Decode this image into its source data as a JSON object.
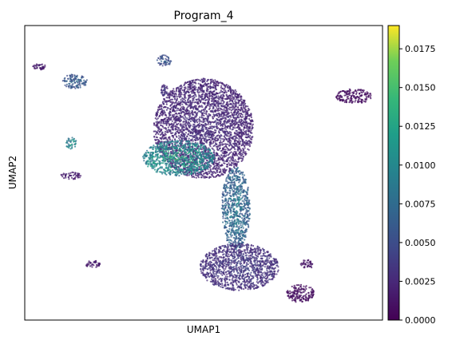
{
  "chart_data": {
    "type": "scatter",
    "title": "Program_4",
    "xlabel": "UMAP1",
    "ylabel": "UMAP2",
    "x_ticks": "none",
    "y_ticks": "none",
    "grid": false,
    "colorbar": {
      "colormap": "viridis",
      "min": 0.0,
      "max": 0.019,
      "ticks": [
        0.0,
        0.0025,
        0.005,
        0.0075,
        0.01,
        0.0125,
        0.015,
        0.0175
      ],
      "tick_labels": [
        "0.0000",
        "0.0025",
        "0.0050",
        "0.0075",
        "0.0100",
        "0.0125",
        "0.0150",
        "0.0175"
      ],
      "placement": "right"
    },
    "clusters": [
      {
        "cx": 4.0,
        "cy": 86.0,
        "rx": 2.0,
        "ry": 1.0,
        "value": 0.002
      },
      {
        "cx": 14.0,
        "cy": 81.0,
        "rx": 3.5,
        "ry": 2.5,
        "value": 0.0075
      },
      {
        "cx": 39.0,
        "cy": 88.0,
        "rx": 2.0,
        "ry": 2.0,
        "value": 0.0065
      },
      {
        "cx": 39.0,
        "cy": 78.0,
        "rx": 1.0,
        "ry": 2.0,
        "value": 0.004
      },
      {
        "cx": 50.0,
        "cy": 65.0,
        "rx": 14.0,
        "ry": 17.0,
        "value": 0.003
      },
      {
        "cx": 43.0,
        "cy": 55.0,
        "rx": 10.0,
        "ry": 6.0,
        "value": 0.013
      },
      {
        "cx": 59.0,
        "cy": 38.0,
        "rx": 4.0,
        "ry": 14.0,
        "value": 0.009
      },
      {
        "cx": 60.0,
        "cy": 18.0,
        "rx": 11.0,
        "ry": 8.0,
        "value": 0.004
      },
      {
        "cx": 92.0,
        "cy": 76.0,
        "rx": 5.0,
        "ry": 2.5,
        "value": 0.001
      },
      {
        "cx": 77.0,
        "cy": 9.0,
        "rx": 4.0,
        "ry": 3.0,
        "value": 0.001
      },
      {
        "cx": 79.0,
        "cy": 19.0,
        "rx": 2.0,
        "ry": 1.5,
        "value": 0.0015
      },
      {
        "cx": 13.0,
        "cy": 60.0,
        "rx": 1.5,
        "ry": 2.0,
        "value": 0.013
      },
      {
        "cx": 13.0,
        "cy": 49.0,
        "rx": 3.0,
        "ry": 1.2,
        "value": 0.002
      },
      {
        "cx": 19.0,
        "cy": 19.0,
        "rx": 2.0,
        "ry": 1.2,
        "value": 0.002
      }
    ]
  }
}
